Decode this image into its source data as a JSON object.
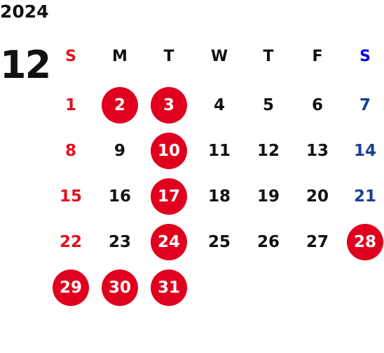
{
  "calendar": {
    "year": "2024",
    "month": "12",
    "weekdays": [
      "S",
      "M",
      "T",
      "W",
      "T",
      "F",
      "S"
    ],
    "weeks": [
      [
        "1",
        "2",
        "3",
        "4",
        "5",
        "6",
        "7"
      ],
      [
        "8",
        "9",
        "10",
        "11",
        "12",
        "13",
        "14"
      ],
      [
        "15",
        "16",
        "17",
        "18",
        "19",
        "20",
        "21"
      ],
      [
        "22",
        "23",
        "24",
        "25",
        "26",
        "27",
        "28"
      ],
      [
        "29",
        "30",
        "31",
        "",
        "",
        "",
        ""
      ]
    ],
    "highlighted_days": [
      "2",
      "3",
      "10",
      "17",
      "24",
      "28",
      "29",
      "30",
      "31"
    ]
  },
  "colors": {
    "sunday": "#e0121f",
    "saturday": "#1e3e94",
    "saturday_header": "#0000ee",
    "weekday": "#111111",
    "highlight_fill": "#e0001e",
    "highlight_text": "#ffffff"
  }
}
